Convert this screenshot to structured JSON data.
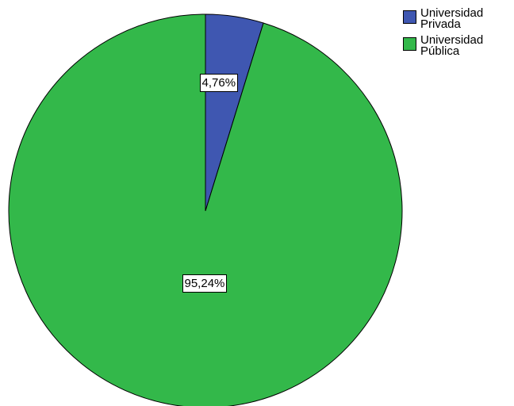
{
  "chart_data": {
    "type": "pie",
    "categories": [
      "Universidad Privada",
      "Universidad Pública"
    ],
    "values": [
      4.76,
      95.24
    ],
    "data_labels": [
      "4,76%",
      "95,24%"
    ],
    "colors": [
      "#3f57b1",
      "#33b84a"
    ],
    "legend": {
      "position": "top-right",
      "entries": [
        "Universidad\nPrivada",
        "Universidad\nPública"
      ]
    },
    "start_angle": "12 o'clock",
    "direction": "clockwise"
  }
}
